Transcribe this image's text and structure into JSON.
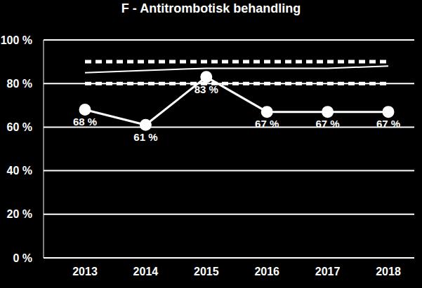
{
  "chart_data": {
    "type": "line",
    "title": "F - Antitrombotisk behandling",
    "categories": [
      "2013",
      "2014",
      "2015",
      "2016",
      "2017",
      "2018"
    ],
    "series": [
      {
        "color": "#ffffff",
        "values": [
          68,
          61,
          83,
          67,
          67,
          67
        ],
        "marker": "circle",
        "line_style": "solid",
        "value_labels": [
          "68 %",
          "61 %",
          "83 %",
          "67 %",
          "67 %",
          "67 %"
        ]
      },
      {
        "color": "#ffffff",
        "values": [
          85,
          86,
          87,
          87,
          87,
          88
        ],
        "marker": "none",
        "line_style": "solid"
      },
      {
        "color": "#ffffff",
        "values": [
          80,
          80,
          80,
          80,
          80,
          80
        ],
        "marker": "none",
        "line_style": "dashed"
      },
      {
        "color": "#ffffff",
        "values": [
          90,
          90,
          90,
          90,
          90,
          90
        ],
        "marker": "none",
        "line_style": "dashed"
      }
    ],
    "ylim": [
      0,
      100
    ],
    "yticks": [
      {
        "value": 0,
        "label": "0 %"
      },
      {
        "value": 20,
        "label": "20 %"
      },
      {
        "value": 40,
        "label": "40 %"
      },
      {
        "value": 60,
        "label": "60 %"
      },
      {
        "value": 80,
        "label": "80 %"
      },
      {
        "value": 100,
        "label": "100 %"
      }
    ],
    "grid": true,
    "data_labels": true
  }
}
